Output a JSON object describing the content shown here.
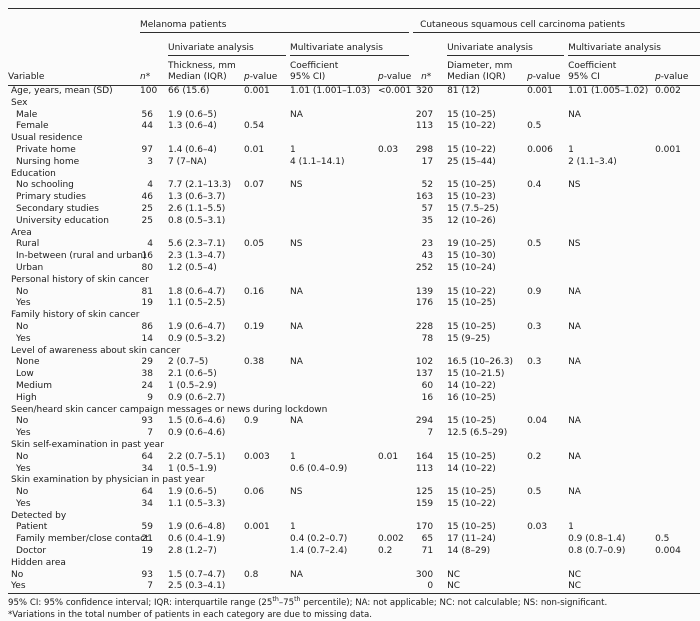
{
  "table": {
    "col_groups": {
      "melanoma": "Melanoma patients",
      "cscc": "Cutaneous squamous cell carcinoma patients"
    },
    "analysis_headers": {
      "univariate": "Univariate analysis",
      "multivariate": "Multivariate analysis"
    },
    "columns": {
      "variable": "Variable",
      "n_italic": "n",
      "n_star": "*",
      "thickness_line1": "Thickness, mm",
      "thickness_line2": "Median (IQR)",
      "p_italic": "p",
      "p_rest": "-value",
      "coef_mel_line1": "Coefficient",
      "coef_mel_line2": "95% CI)",
      "diameter_line1": "Diameter, mm",
      "diameter_line2": "Median (IQR)",
      "coef_cscc_line1": "Coefficient",
      "coef_cscc_line2": "95% CI"
    },
    "rows": [
      {
        "label": "Age, years, mean (SD)",
        "indent": false,
        "group": false,
        "cells": [
          "100",
          "66 (15.6)",
          "0.001",
          "1.01 (1.001–1.03)",
          "<0.001",
          "320",
          "81 (12)",
          "0.001",
          "1.01 (1.005–1.02)",
          "0.002"
        ]
      },
      {
        "label": "Sex",
        "group": true
      },
      {
        "label": "Male",
        "indent": true,
        "group": false,
        "cells": [
          "56",
          "1.9 (0.6–5)",
          "",
          "NA",
          "",
          "207",
          "15 (10–25)",
          "",
          "NA",
          ""
        ]
      },
      {
        "label": "Female",
        "indent": true,
        "group": false,
        "cells": [
          "44",
          "1.3 (0.6–4)",
          "0.54",
          "",
          "",
          "113",
          "15 (10–22)",
          "0.5",
          "",
          ""
        ]
      },
      {
        "label": "Usual residence",
        "group": true
      },
      {
        "label": "Private home",
        "indent": true,
        "group": false,
        "cells": [
          "97",
          "1.4 (0.6–4)",
          "0.01",
          "1",
          "0.03",
          "298",
          "15 (10–22)",
          "0.006",
          "1",
          "0.001"
        ]
      },
      {
        "label": "Nursing home",
        "indent": true,
        "group": false,
        "cells": [
          "3",
          "7 (7–NA)",
          "",
          "4 (1.1–14.1)",
          "",
          "17",
          "25 (15–44)",
          "",
          "2 (1.1–3.4)",
          ""
        ]
      },
      {
        "label": "Education",
        "group": true
      },
      {
        "label": "No schooling",
        "indent": true,
        "group": false,
        "cells": [
          "4",
          "7.7 (2.1–13.3)",
          "0.07",
          "NS",
          "",
          "52",
          "15 (10–25)",
          "0.4",
          "NS",
          ""
        ]
      },
      {
        "label": "Primary studies",
        "indent": true,
        "group": false,
        "cells": [
          "46",
          "1.3 (0.6–3.7)",
          "",
          "",
          "",
          "163",
          "15 (10–23)",
          "",
          "",
          ""
        ]
      },
      {
        "label": "Secondary studies",
        "indent": true,
        "group": false,
        "cells": [
          "25",
          "2.6 (1.1–5.5)",
          "",
          "",
          "",
          "57",
          "15 (7.5–25)",
          "",
          "",
          ""
        ]
      },
      {
        "label": "University education",
        "indent": true,
        "group": false,
        "cells": [
          "25",
          "0.8 (0.5–3.1)",
          "",
          "",
          "",
          "35",
          "12 (10–26)",
          "",
          "",
          ""
        ]
      },
      {
        "label": "Area",
        "group": true
      },
      {
        "label": "Rural",
        "indent": true,
        "group": false,
        "cells": [
          "4",
          "5.6 (2.3–7.1)",
          "0.05",
          "NS",
          "",
          "23",
          "19 (10–25)",
          "0.5",
          "NS",
          ""
        ]
      },
      {
        "label": "In-between (rural and urban)",
        "indent": true,
        "group": false,
        "cells": [
          "16",
          "2.3 (1.3–4.7)",
          "",
          "",
          "",
          "43",
          "15 (10–30)",
          "",
          "",
          ""
        ]
      },
      {
        "label": "Urban",
        "indent": true,
        "group": false,
        "cells": [
          "80",
          "1.2 (0.5–4)",
          "",
          "",
          "",
          "252",
          "15 (10–24)",
          "",
          "",
          ""
        ]
      },
      {
        "label": "Personal history of skin cancer",
        "group": true
      },
      {
        "label": "No",
        "indent": true,
        "group": false,
        "cells": [
          "81",
          "1.8 (0.6–4.7)",
          "0.16",
          "NA",
          "",
          "139",
          "15 (10–22)",
          "0.9",
          "NA",
          ""
        ]
      },
      {
        "label": "Yes",
        "indent": true,
        "group": false,
        "cells": [
          "19",
          "1.1 (0.5–2.5)",
          "",
          "",
          "",
          "176",
          "15 (10–25)",
          "",
          "",
          ""
        ]
      },
      {
        "label": "Family history of skin cancer",
        "group": true
      },
      {
        "label": "No",
        "indent": true,
        "group": false,
        "cells": [
          "86",
          "1.9 (0.6–4.7)",
          "0.19",
          "NA",
          "",
          "228",
          "15 (10–25)",
          "0.3",
          "NA",
          ""
        ]
      },
      {
        "label": "Yes",
        "indent": true,
        "group": false,
        "cells": [
          "14",
          "0.9 (0.5–3.2)",
          "",
          "",
          "",
          "78",
          "15 (9–25)",
          "",
          "",
          ""
        ]
      },
      {
        "label": "Level of awareness about skin cancer",
        "group": true
      },
      {
        "label": "None",
        "indent": true,
        "group": false,
        "cells": [
          "29",
          "2 (0.7–5)",
          "0.38",
          "NA",
          "",
          "102",
          "16.5 (10–26.3)",
          "0.3",
          "NA",
          ""
        ]
      },
      {
        "label": "Low",
        "indent": true,
        "group": false,
        "cells": [
          "38",
          "2.1 (0.6–5)",
          "",
          "",
          "",
          "137",
          "15 (10–21.5)",
          "",
          "",
          ""
        ]
      },
      {
        "label": "Medium",
        "indent": true,
        "group": false,
        "cells": [
          "24",
          "1 (0.5–2.9)",
          "",
          "",
          "",
          "60",
          "14 (10–22)",
          "",
          "",
          ""
        ]
      },
      {
        "label": "High",
        "indent": true,
        "group": false,
        "cells": [
          "9",
          "0.9 (0.6–2.7)",
          "",
          "",
          "",
          "16",
          "16 (10–25)",
          "",
          "",
          ""
        ]
      },
      {
        "label": "Seen/heard skin cancer campaign messages or news during lockdown",
        "group": true
      },
      {
        "label": "No",
        "indent": true,
        "group": false,
        "cells": [
          "93",
          "1.5 (0.6–4.6)",
          "0.9",
          "NA",
          "",
          "294",
          "15 (10–25)",
          "0.04",
          "NA",
          ""
        ]
      },
      {
        "label": "Yes",
        "indent": true,
        "group": false,
        "cells": [
          "7",
          "0.9 (0.6–4.6)",
          "",
          "",
          "",
          "7",
          "12.5 (6.5–29)",
          "",
          "",
          ""
        ]
      },
      {
        "label": "Skin self-examination in past year",
        "group": true
      },
      {
        "label": "No",
        "indent": true,
        "group": false,
        "cells": [
          "64",
          "2.2 (0.7–5.1)",
          "0.003",
          "1",
          "0.01",
          "164",
          "15 (10–25)",
          "0.2",
          "NA",
          ""
        ]
      },
      {
        "label": "Yes",
        "indent": true,
        "group": false,
        "cells": [
          "34",
          "1 (0.5–1.9)",
          "",
          "0.6 (0.4–0.9)",
          "",
          "113",
          "14 (10–22)",
          "",
          "",
          ""
        ]
      },
      {
        "label": "Skin examination by physician in past year",
        "group": true
      },
      {
        "label": "No",
        "indent": true,
        "group": false,
        "cells": [
          "64",
          "1.9 (0.6–5)",
          "0.06",
          "NS",
          "",
          "125",
          "15 (10–25)",
          "0.5",
          "NA",
          ""
        ]
      },
      {
        "label": "Yes",
        "indent": true,
        "group": false,
        "cells": [
          "34",
          "1.1 (0.5–3.3)",
          "",
          "",
          "",
          "159",
          "15 (10–22)",
          "",
          "",
          ""
        ]
      },
      {
        "label": "Detected by",
        "group": true
      },
      {
        "label": "Patient",
        "indent": true,
        "group": false,
        "cells": [
          "59",
          "1.9 (0.6–4.8)",
          "0.001",
          "1",
          "",
          "170",
          "15 (10–25)",
          "0.03",
          "1",
          ""
        ]
      },
      {
        "label": "Family member/close contact",
        "indent": true,
        "group": false,
        "cells": [
          "21",
          "0.6 (0.4–1.9)",
          "",
          "0.4 (0.2–0.7)",
          "0.002",
          "65",
          "17 (11–24)",
          "",
          "0.9 (0.8–1.4)",
          "0.5"
        ]
      },
      {
        "label": "Doctor",
        "indent": true,
        "group": false,
        "cells": [
          "19",
          "2.8 (1.2–7)",
          "",
          "1.4 (0.7–2.4)",
          "0.2",
          "71",
          "14 (8–29)",
          "",
          "0.8 (0.7–0.9)",
          "0.004"
        ]
      },
      {
        "label": "Hidden area",
        "group": true
      },
      {
        "label": "No",
        "indent": false,
        "group": false,
        "cells": [
          "93",
          "1.5 (0.7–4.7)",
          "0.8",
          "NA",
          "",
          "300",
          "NC",
          "",
          "NC",
          ""
        ]
      },
      {
        "label": "Yes",
        "indent": false,
        "group": false,
        "cells": [
          "7",
          "2.5 (0.3–4.1)",
          "",
          "",
          "",
          "0",
          "NC",
          "",
          "NC",
          ""
        ]
      }
    ]
  },
  "footnotes": {
    "abbrev_segments": [
      {
        "text": "95% CI: 95% confidence interval; IQR: interquartile range (25"
      },
      {
        "sup": "th"
      },
      {
        "text": "–75"
      },
      {
        "sup": "th"
      },
      {
        "text": " percentile); NA: not applicable; NC: not calculable; NS: non-significant."
      }
    ],
    "asterisk": "*Variations in the total number of patients in each category are due to missing data."
  },
  "colors": {
    "text": "#1b1b1b",
    "rule": "#2e2e2e",
    "background": "#fbfbfb"
  }
}
